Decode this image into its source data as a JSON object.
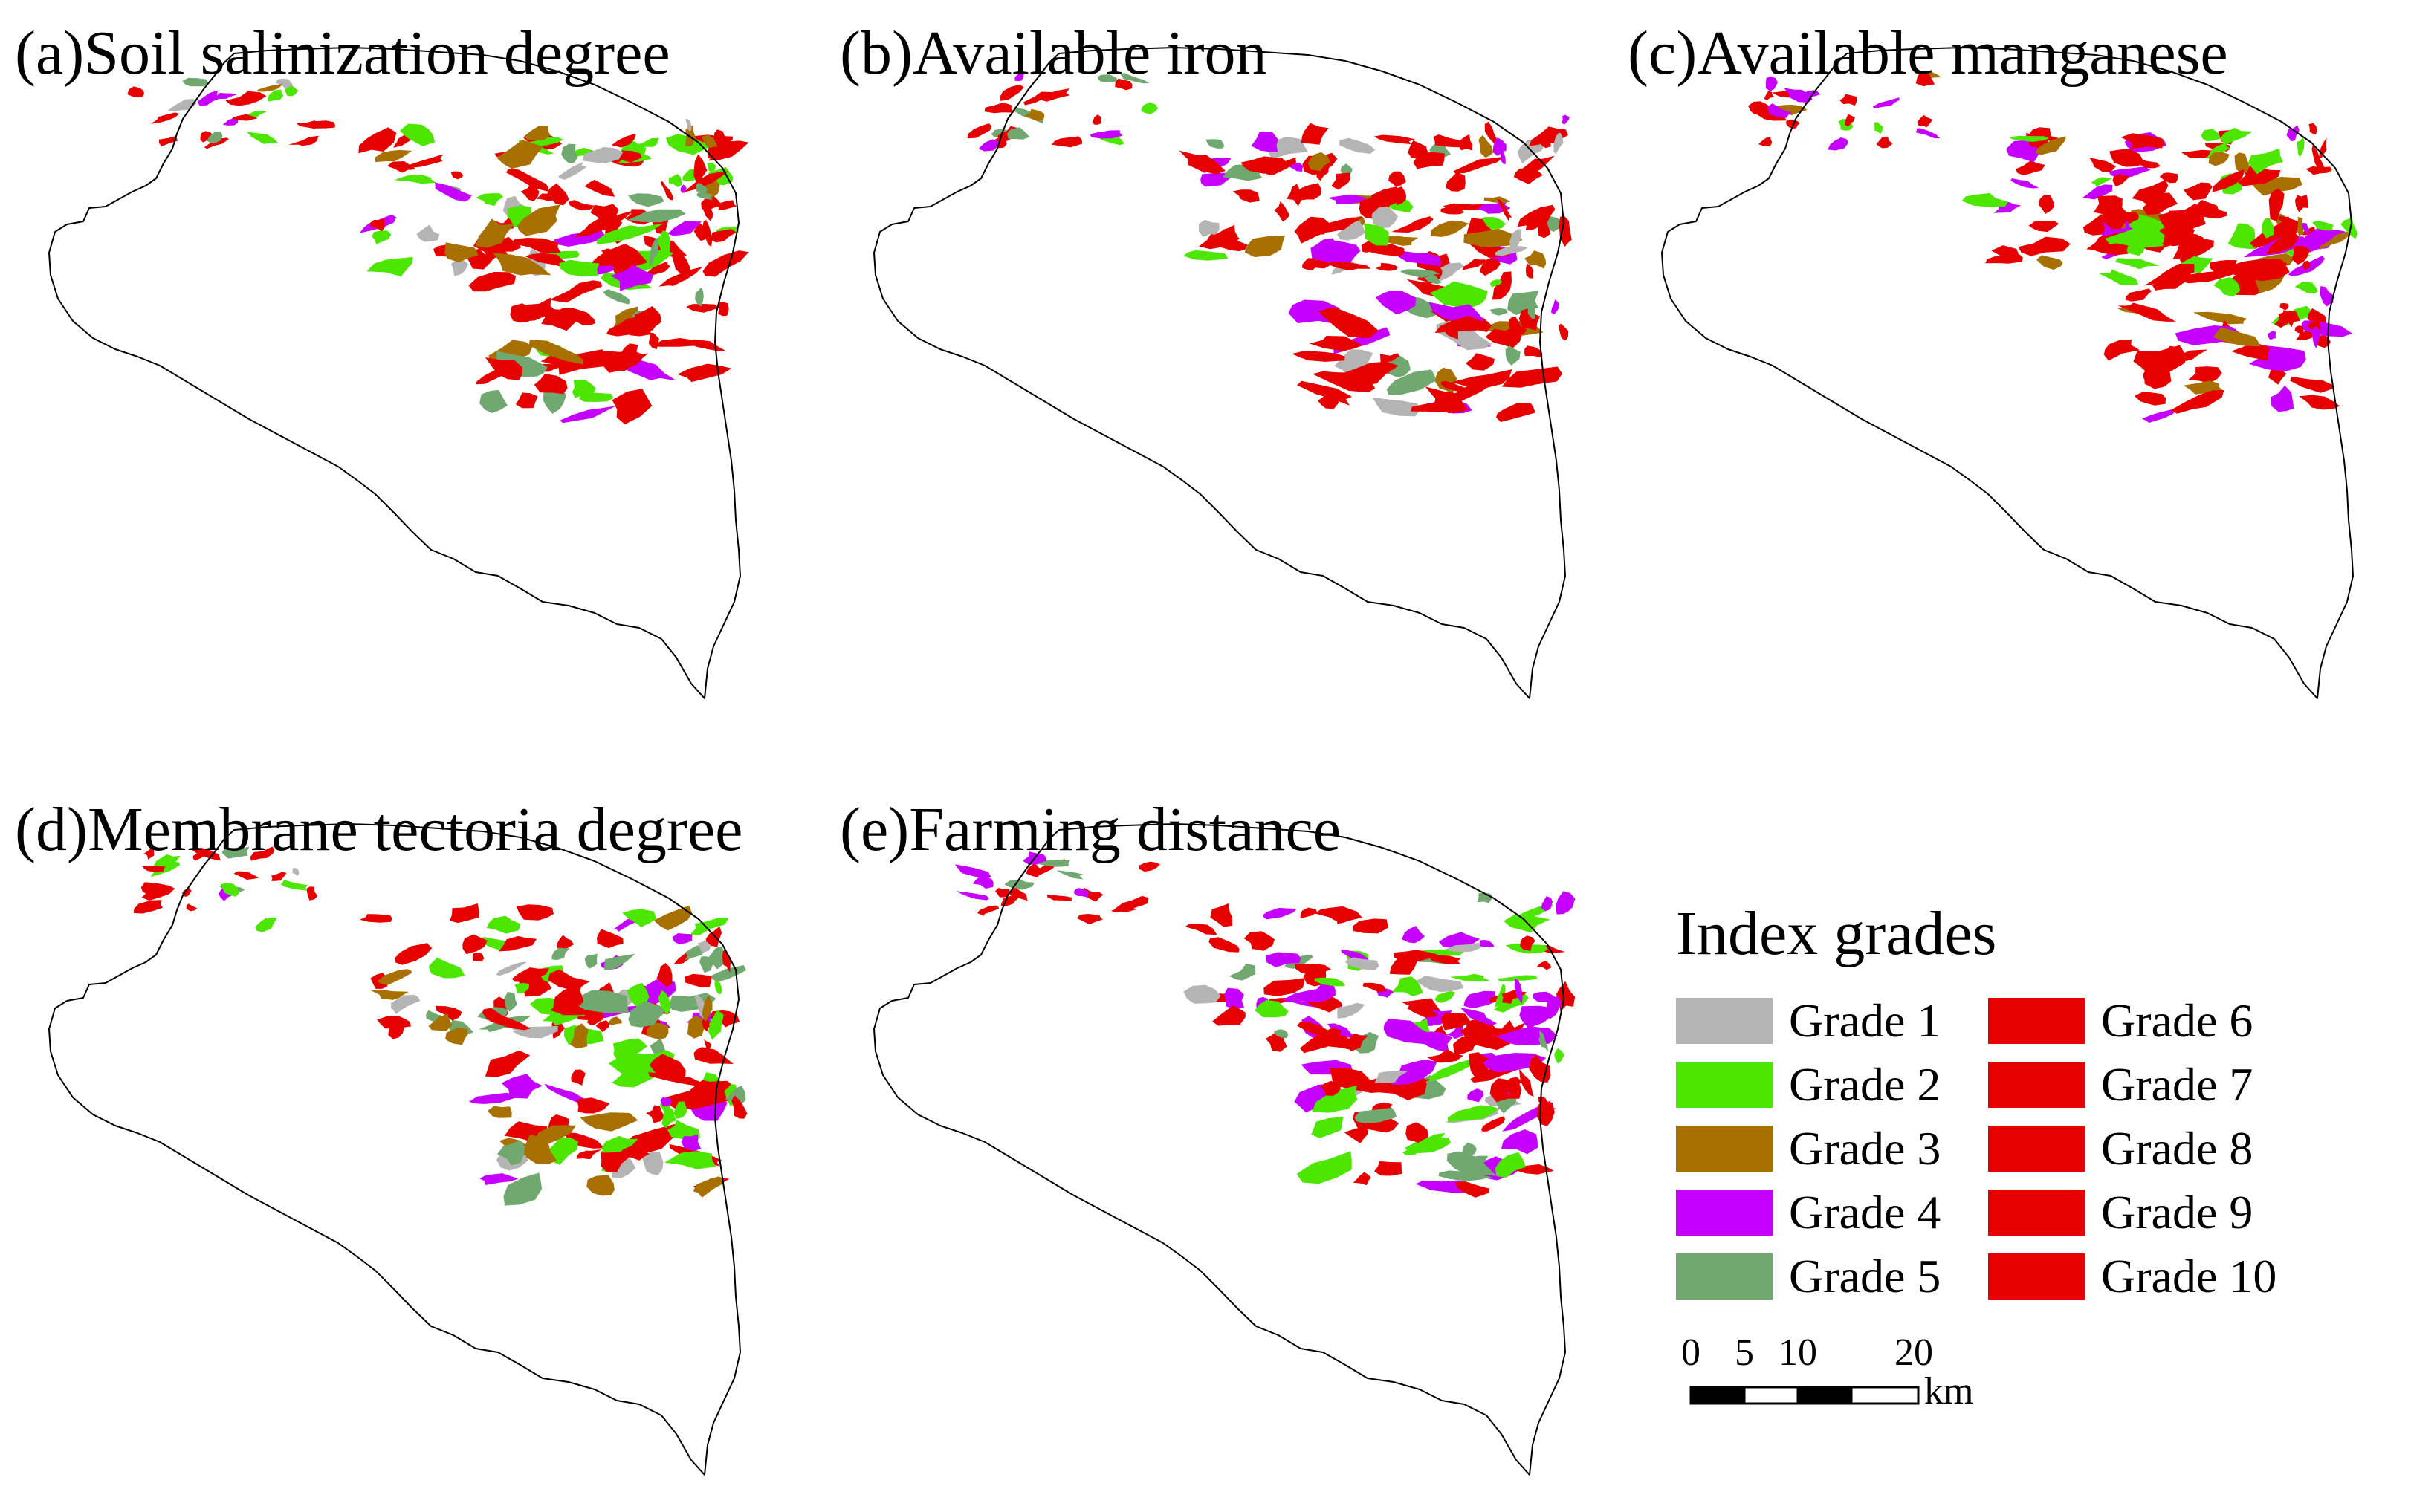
{
  "panels": [
    {
      "id": "a",
      "title": "(a)Soil salinization degree"
    },
    {
      "id": "b",
      "title": "(b)Available iron"
    },
    {
      "id": "c",
      "title": "(c)Available manganese"
    },
    {
      "id": "d",
      "title": "(d)Membrane tectoria degree"
    },
    {
      "id": "e",
      "title": "(e)Farming distance"
    }
  ],
  "legend": {
    "title": "Index grades",
    "grades": [
      {
        "label": "Grade 1",
        "color": "#b4b4b4"
      },
      {
        "label": "Grade 2",
        "color": "#4ce600"
      },
      {
        "label": "Grade 3",
        "color": "#a87000"
      },
      {
        "label": "Grade 4",
        "color": "#c500ff"
      },
      {
        "label": "Grade 5",
        "color": "#70a870"
      },
      {
        "label": "Grade 6",
        "color": "#e60000"
      },
      {
        "label": "Grade 7",
        "color": "#e60000"
      },
      {
        "label": "Grade 8",
        "color": "#e60000"
      },
      {
        "label": "Grade 9",
        "color": "#e60000"
      },
      {
        "label": "Grade 10",
        "color": "#e60000"
      }
    ]
  },
  "scalebar": {
    "ticks": [
      "0",
      "5",
      "10",
      "20"
    ],
    "unit": "km"
  }
}
